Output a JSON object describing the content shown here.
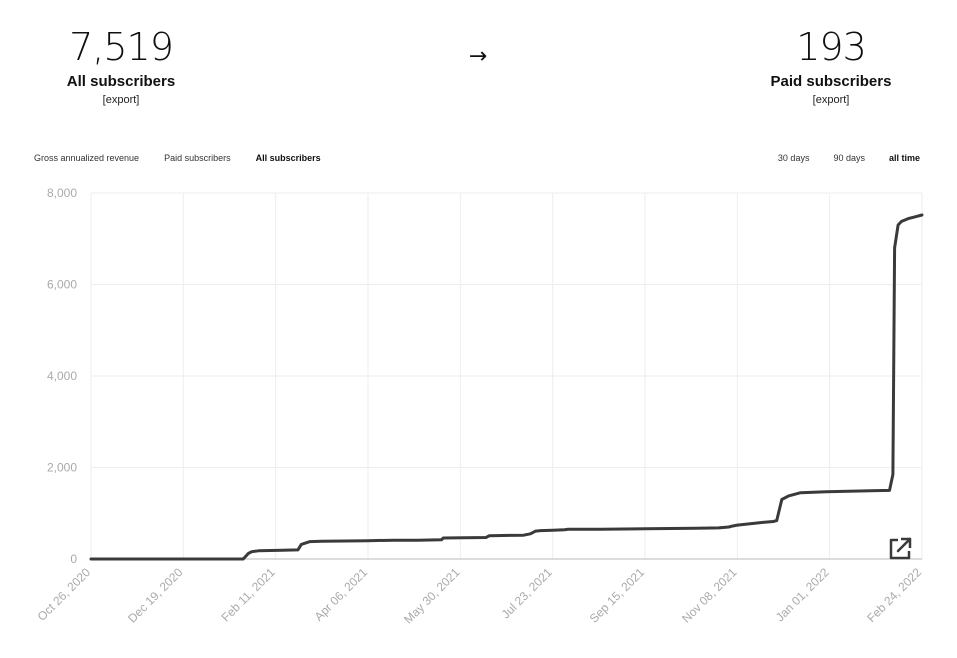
{
  "stats": {
    "left": {
      "value": "7,519",
      "label": "All subscribers",
      "export": "[export]"
    },
    "arrow": "→",
    "right": {
      "value": "193",
      "label": "Paid subscribers",
      "export": "[export]"
    }
  },
  "metric_tabs": [
    "Gross annualized revenue",
    "Paid subscribers",
    "All subscribers"
  ],
  "active_metric": "All subscribers",
  "range_tabs": [
    "30 days",
    "90 days",
    "all time"
  ],
  "active_range": "all time",
  "icons": {
    "open_external": "open-external-icon"
  },
  "colors": {
    "line": "#3a3a3a",
    "grid": "#eeeeee",
    "axis": "#bbbbbb",
    "tick": "#aaaaaa"
  },
  "chart_data": {
    "type": "line",
    "title": "",
    "xlabel": "",
    "ylabel": "",
    "ylim": [
      0,
      8000
    ],
    "yticks": [
      0,
      2000,
      4000,
      6000,
      8000
    ],
    "ytick_labels": [
      "0",
      "2,000",
      "4,000",
      "6,000",
      "8,000"
    ],
    "xticks": [
      "2020-10-26",
      "2020-12-19",
      "2021-02-11",
      "2021-04-06",
      "2021-05-30",
      "2021-07-23",
      "2021-09-15",
      "2021-11-08",
      "2022-01-01",
      "2022-02-24"
    ],
    "xtick_labels": [
      "Oct 26, 2020",
      "Dec 19, 2020",
      "Feb 11, 2021",
      "Apr 06, 2021",
      "May 30, 2021",
      "Jul 23, 2021",
      "Sep 15, 2021",
      "Nov 08, 2021",
      "Jan 01, 2022",
      "Feb 24, 2022"
    ],
    "xlim": [
      "2020-10-26",
      "2022-02-24"
    ],
    "grid": true,
    "series": [
      {
        "x": [
          "2020-10-26",
          "2021-01-23",
          "2021-01-26",
          "2021-01-28",
          "2021-02-01",
          "2021-02-15",
          "2021-02-24",
          "2021-02-26",
          "2021-03-03",
          "2021-03-10",
          "2021-04-06",
          "2021-04-21",
          "2021-05-05",
          "2021-05-19",
          "2021-05-20",
          "2021-06-14",
          "2021-06-16",
          "2021-07-06",
          "2021-07-10",
          "2021-07-13",
          "2021-07-16",
          "2021-07-23",
          "2021-07-30",
          "2021-08-01",
          "2021-08-20",
          "2021-09-15",
          "2021-10-15",
          "2021-10-28",
          "2021-11-03",
          "2021-11-05",
          "2021-11-08",
          "2021-11-23",
          "2021-11-29",
          "2021-12-01",
          "2021-12-04",
          "2021-12-08",
          "2021-12-15",
          "2021-12-30",
          "2022-01-25",
          "2022-02-05",
          "2022-02-07",
          "2022-02-08",
          "2022-02-10",
          "2022-02-12",
          "2022-02-16",
          "2022-02-20",
          "2022-02-24"
        ],
        "y": [
          0,
          0,
          120,
          160,
          180,
          190,
          200,
          320,
          380,
          390,
          400,
          410,
          410,
          420,
          460,
          470,
          510,
          520,
          550,
          610,
          620,
          630,
          640,
          650,
          650,
          660,
          670,
          680,
          700,
          720,
          740,
          800,
          820,
          840,
          1300,
          1380,
          1450,
          1470,
          1490,
          1500,
          1850,
          6800,
          7300,
          7380,
          7440,
          7480,
          7519
        ]
      }
    ]
  }
}
